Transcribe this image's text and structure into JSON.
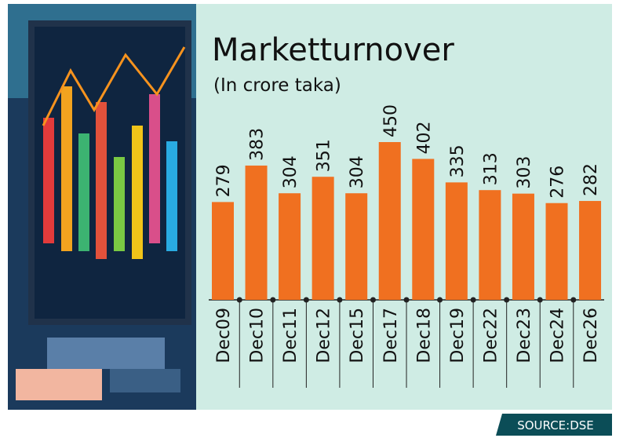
{
  "chart_data": {
    "type": "bar",
    "title": "Marketturnover",
    "subtitle": "(In crore taka)",
    "categories": [
      "Dec09",
      "Dec10",
      "Dec11",
      "Dec12",
      "Dec15",
      "Dec17",
      "Dec18",
      "Dec19",
      "Dec22",
      "Dec23",
      "Dec24",
      "Dec26"
    ],
    "values": [
      279,
      383,
      304,
      351,
      304,
      450,
      402,
      335,
      313,
      303,
      276,
      282
    ],
    "color": "#f07020",
    "source": "SOURCE:DSE"
  }
}
